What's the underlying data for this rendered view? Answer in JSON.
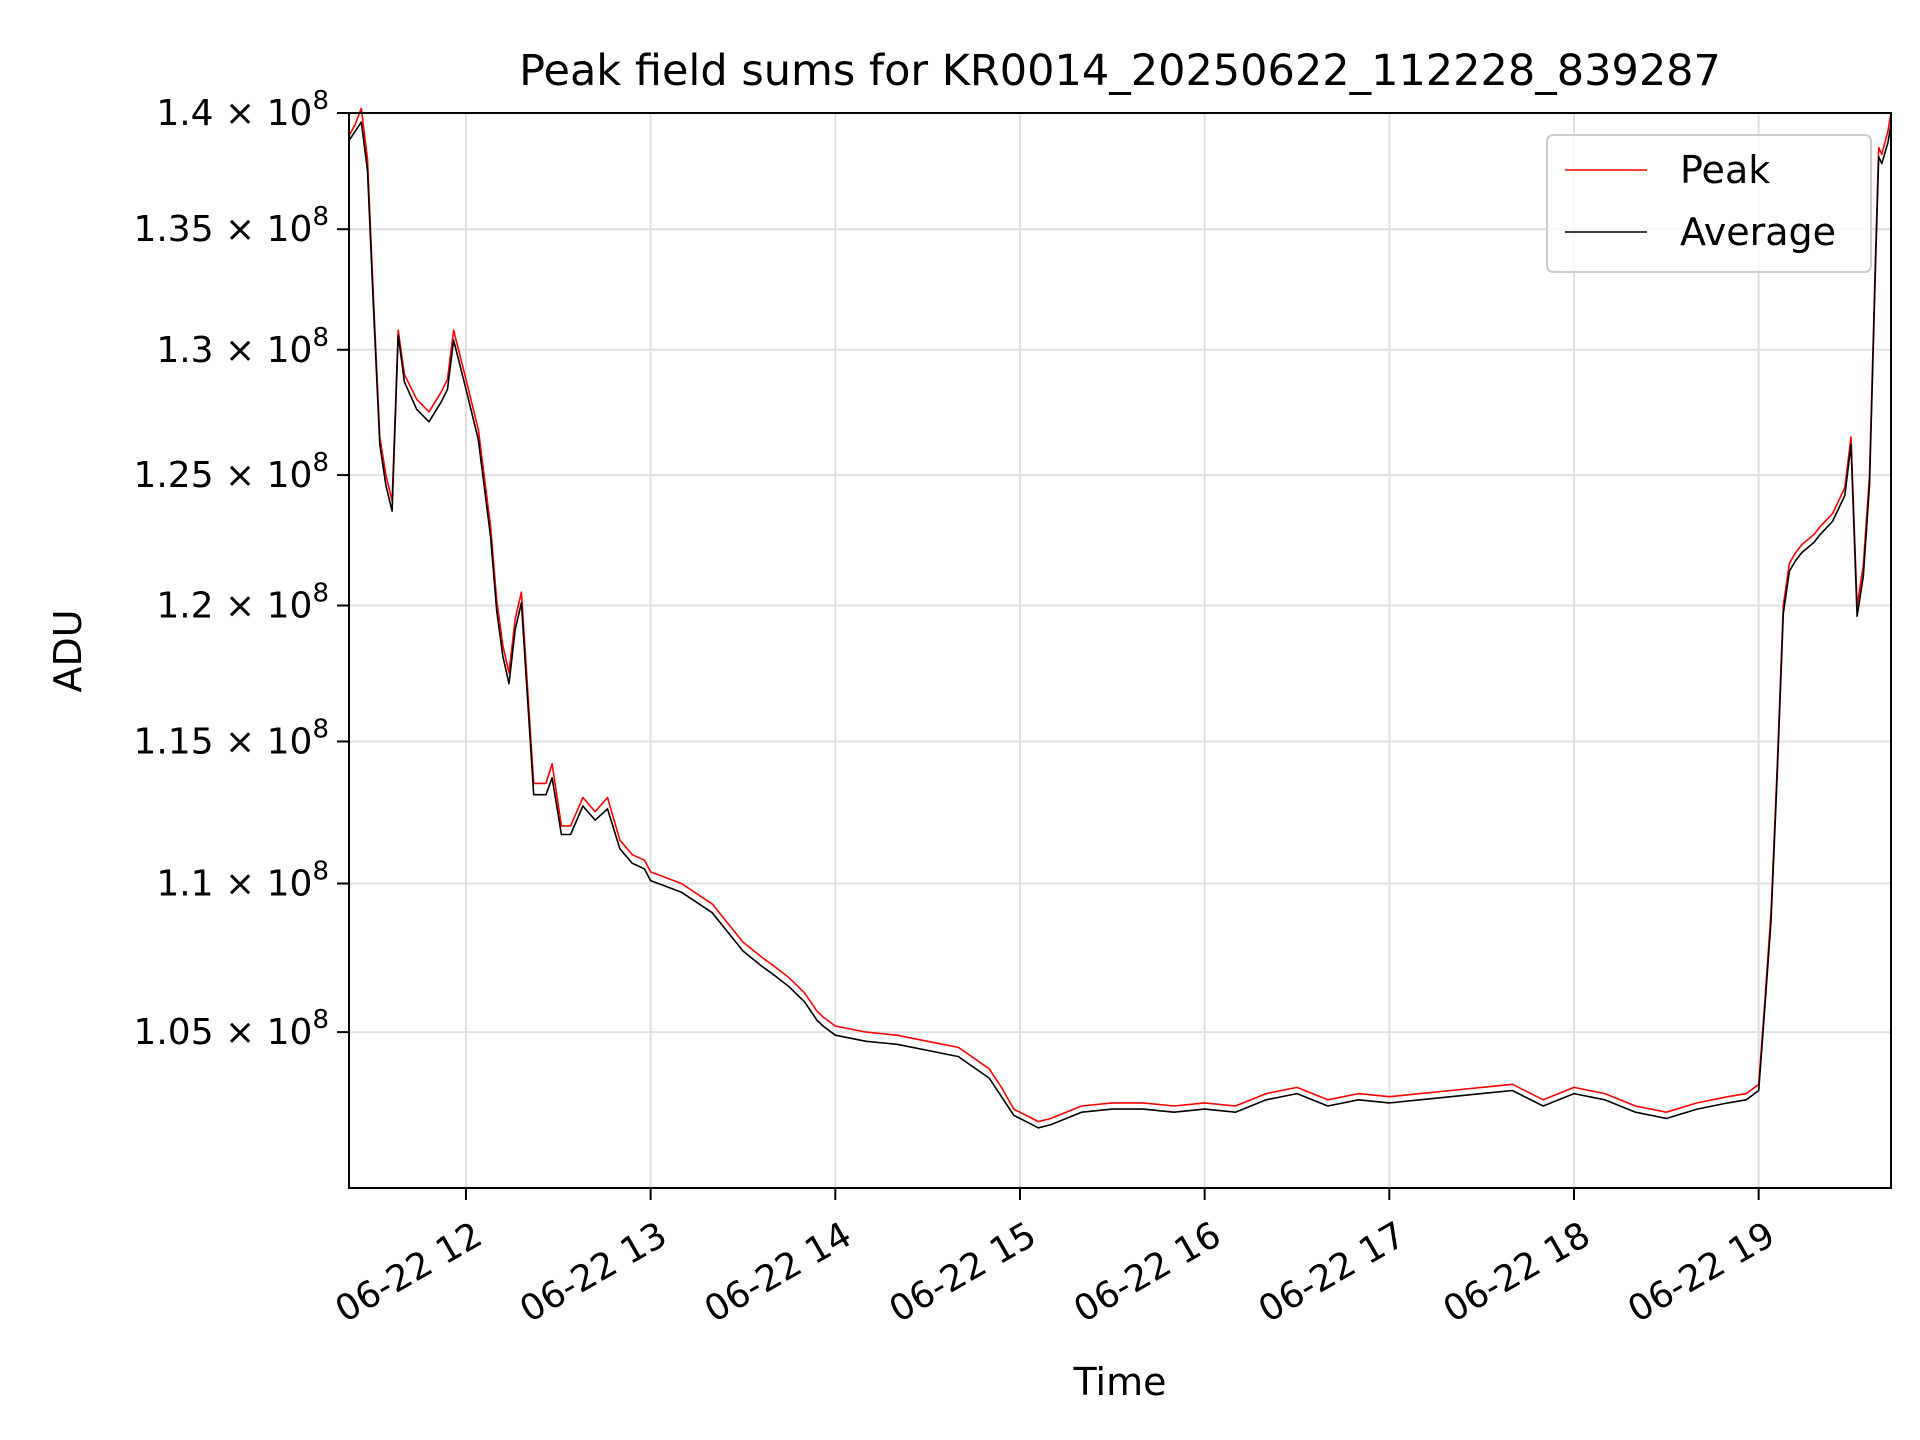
{
  "chart_data": {
    "type": "line",
    "title": "Peak field sums for KR0014_20250622_112228_839287",
    "xlabel": "Time",
    "ylabel": "ADU",
    "yscale": "log",
    "ylim": [
      100000000,
      140000000
    ],
    "xlim": [
      "2025-06-22 11:22",
      "2025-06-22 19:43"
    ],
    "grid": true,
    "legend_position": "top-right",
    "x_ticks": [
      "2025-06-22 12:00",
      "2025-06-22 13:00",
      "2025-06-22 14:00",
      "2025-06-22 15:00",
      "2025-06-22 16:00",
      "2025-06-22 17:00",
      "2025-06-22 18:00",
      "2025-06-22 19:00"
    ],
    "x_tick_labels": [
      "06-22 12",
      "06-22 13",
      "06-22 14",
      "06-22 15",
      "06-22 16",
      "06-22 17",
      "06-22 18",
      "06-22 19"
    ],
    "y_ticks": [
      105000000,
      110000000,
      115000000,
      120000000,
      125000000,
      130000000,
      135000000,
      140000000
    ],
    "y_tick_labels": [
      {
        "mant": "1.05",
        "exp": "8"
      },
      {
        "mant": "1.1",
        "exp": "8"
      },
      {
        "mant": "1.15",
        "exp": "8"
      },
      {
        "mant": "1.2",
        "exp": "8"
      },
      {
        "mant": "1.25",
        "exp": "8"
      },
      {
        "mant": "1.3",
        "exp": "8"
      },
      {
        "mant": "1.35",
        "exp": "8"
      },
      {
        "mant": "1.4",
        "exp": "8"
      }
    ],
    "series": [
      {
        "name": "Peak",
        "color": "#ff0000",
        "x": [
          "2025-06-22 11:22",
          "2025-06-22 11:24",
          "2025-06-22 11:26",
          "2025-06-22 11:28",
          "2025-06-22 11:30",
          "2025-06-22 11:32",
          "2025-06-22 11:34",
          "2025-06-22 11:36",
          "2025-06-22 11:38",
          "2025-06-22 11:40",
          "2025-06-22 11:44",
          "2025-06-22 11:48",
          "2025-06-22 11:52",
          "2025-06-22 11:54",
          "2025-06-22 11:56",
          "2025-06-22 12:00",
          "2025-06-22 12:04",
          "2025-06-22 12:08",
          "2025-06-22 12:10",
          "2025-06-22 12:12",
          "2025-06-22 12:14",
          "2025-06-22 12:16",
          "2025-06-22 12:18",
          "2025-06-22 12:22",
          "2025-06-22 12:26",
          "2025-06-22 12:28",
          "2025-06-22 12:31",
          "2025-06-22 12:34",
          "2025-06-22 12:38",
          "2025-06-22 12:42",
          "2025-06-22 12:46",
          "2025-06-22 12:50",
          "2025-06-22 12:54",
          "2025-06-22 12:58",
          "2025-06-22 13:00",
          "2025-06-22 13:10",
          "2025-06-22 13:20",
          "2025-06-22 13:30",
          "2025-06-22 13:36",
          "2025-06-22 13:40",
          "2025-06-22 13:45",
          "2025-06-22 13:50",
          "2025-06-22 13:52",
          "2025-06-22 13:54",
          "2025-06-22 13:56",
          "2025-06-22 14:00",
          "2025-06-22 14:10",
          "2025-06-22 14:20",
          "2025-06-22 14:30",
          "2025-06-22 14:40",
          "2025-06-22 14:50",
          "2025-06-22 14:54",
          "2025-06-22 14:58",
          "2025-06-22 15:02",
          "2025-06-22 15:04",
          "2025-06-22 15:06",
          "2025-06-22 15:10",
          "2025-06-22 15:20",
          "2025-06-22 15:30",
          "2025-06-22 15:40",
          "2025-06-22 15:50",
          "2025-06-22 16:00",
          "2025-06-22 16:10",
          "2025-06-22 16:20",
          "2025-06-22 16:30",
          "2025-06-22 16:40",
          "2025-06-22 16:50",
          "2025-06-22 17:00",
          "2025-06-22 17:10",
          "2025-06-22 17:20",
          "2025-06-22 17:30",
          "2025-06-22 17:40",
          "2025-06-22 17:50",
          "2025-06-22 18:00",
          "2025-06-22 18:10",
          "2025-06-22 18:20",
          "2025-06-22 18:30",
          "2025-06-22 18:40",
          "2025-06-22 18:50",
          "2025-06-22 18:56",
          "2025-06-22 19:00",
          "2025-06-22 19:02",
          "2025-06-22 19:04",
          "2025-06-22 19:06",
          "2025-06-22 19:08",
          "2025-06-22 19:10",
          "2025-06-22 19:12",
          "2025-06-22 19:14",
          "2025-06-22 19:16",
          "2025-06-22 19:18",
          "2025-06-22 19:20",
          "2025-06-22 19:24",
          "2025-06-22 19:28",
          "2025-06-22 19:30",
          "2025-06-22 19:32",
          "2025-06-22 19:34",
          "2025-06-22 19:36",
          "2025-06-22 19:38",
          "2025-06-22 19:39",
          "2025-06-22 19:40",
          "2025-06-22 19:42",
          "2025-06-22 19:43"
        ],
        "y": [
          139000000,
          139500000,
          140200000,
          138000000,
          132000000,
          126500000,
          125000000,
          124000000,
          130800000,
          129000000,
          128000000,
          127500000,
          128300000,
          128800000,
          130800000,
          128800000,
          126800000,
          123000000,
          120200000,
          118500000,
          117500000,
          119500000,
          120500000,
          113500000,
          113500000,
          114200000,
          112000000,
          112000000,
          113000000,
          112500000,
          113000000,
          111500000,
          111000000,
          110800000,
          110400000,
          110000000,
          109300000,
          108000000,
          107500000,
          107200000,
          106800000,
          106300000,
          106000000,
          105700000,
          105500000,
          105200000,
          105000000,
          104900000,
          104700000,
          104500000,
          103800000,
          103200000,
          102500000,
          102300000,
          102200000,
          102100000,
          102200000,
          102600000,
          102700000,
          102700000,
          102600000,
          102700000,
          102600000,
          103000000,
          103200000,
          102800000,
          103000000,
          102900000,
          103000000,
          103100000,
          103200000,
          103300000,
          102800000,
          103200000,
          103000000,
          102600000,
          102400000,
          102700000,
          102900000,
          103000000,
          103300000,
          106000000,
          109000000,
          114000000,
          120000000,
          121600000,
          122000000,
          122300000,
          122500000,
          122700000,
          123000000,
          123500000,
          124500000,
          126500000,
          120000000,
          121500000,
          125000000,
          134000000,
          138500000,
          138200000,
          139200000,
          140000000
        ]
      },
      {
        "name": "Average",
        "color": "#000000",
        "x": [
          "2025-06-22 11:22",
          "2025-06-22 11:24",
          "2025-06-22 11:26",
          "2025-06-22 11:28",
          "2025-06-22 11:30",
          "2025-06-22 11:32",
          "2025-06-22 11:34",
          "2025-06-22 11:36",
          "2025-06-22 11:38",
          "2025-06-22 11:40",
          "2025-06-22 11:44",
          "2025-06-22 11:48",
          "2025-06-22 11:52",
          "2025-06-22 11:54",
          "2025-06-22 11:56",
          "2025-06-22 12:00",
          "2025-06-22 12:04",
          "2025-06-22 12:08",
          "2025-06-22 12:10",
          "2025-06-22 12:12",
          "2025-06-22 12:14",
          "2025-06-22 12:16",
          "2025-06-22 12:18",
          "2025-06-22 12:22",
          "2025-06-22 12:26",
          "2025-06-22 12:28",
          "2025-06-22 12:31",
          "2025-06-22 12:34",
          "2025-06-22 12:38",
          "2025-06-22 12:42",
          "2025-06-22 12:46",
          "2025-06-22 12:50",
          "2025-06-22 12:54",
          "2025-06-22 12:58",
          "2025-06-22 13:00",
          "2025-06-22 13:10",
          "2025-06-22 13:20",
          "2025-06-22 13:30",
          "2025-06-22 13:36",
          "2025-06-22 13:40",
          "2025-06-22 13:45",
          "2025-06-22 13:50",
          "2025-06-22 13:52",
          "2025-06-22 13:54",
          "2025-06-22 13:56",
          "2025-06-22 14:00",
          "2025-06-22 14:10",
          "2025-06-22 14:20",
          "2025-06-22 14:30",
          "2025-06-22 14:40",
          "2025-06-22 14:50",
          "2025-06-22 14:54",
          "2025-06-22 14:58",
          "2025-06-22 15:02",
          "2025-06-22 15:04",
          "2025-06-22 15:06",
          "2025-06-22 15:10",
          "2025-06-22 15:20",
          "2025-06-22 15:30",
          "2025-06-22 15:40",
          "2025-06-22 15:50",
          "2025-06-22 16:00",
          "2025-06-22 16:10",
          "2025-06-22 16:20",
          "2025-06-22 16:30",
          "2025-06-22 16:40",
          "2025-06-22 16:50",
          "2025-06-22 17:00",
          "2025-06-22 17:10",
          "2025-06-22 17:20",
          "2025-06-22 17:30",
          "2025-06-22 17:40",
          "2025-06-22 17:50",
          "2025-06-22 18:00",
          "2025-06-22 18:10",
          "2025-06-22 18:20",
          "2025-06-22 18:30",
          "2025-06-22 18:40",
          "2025-06-22 18:50",
          "2025-06-22 18:56",
          "2025-06-22 19:00",
          "2025-06-22 19:02",
          "2025-06-22 19:04",
          "2025-06-22 19:06",
          "2025-06-22 19:08",
          "2025-06-22 19:10",
          "2025-06-22 19:12",
          "2025-06-22 19:14",
          "2025-06-22 19:16",
          "2025-06-22 19:18",
          "2025-06-22 19:20",
          "2025-06-22 19:24",
          "2025-06-22 19:28",
          "2025-06-22 19:30",
          "2025-06-22 19:32",
          "2025-06-22 19:34",
          "2025-06-22 19:36",
          "2025-06-22 19:38",
          "2025-06-22 19:39",
          "2025-06-22 19:40",
          "2025-06-22 19:42",
          "2025-06-22 19:43"
        ],
        "y": [
          138800000,
          139200000,
          139600000,
          137500000,
          131600000,
          126200000,
          124600000,
          123600000,
          130600000,
          128700000,
          127600000,
          127100000,
          127900000,
          128400000,
          130400000,
          128400000,
          126400000,
          122600000,
          119800000,
          118100000,
          117100000,
          119100000,
          120100000,
          113100000,
          113100000,
          113700000,
          111700000,
          111700000,
          112700000,
          112200000,
          112600000,
          111200000,
          110700000,
          110500000,
          110100000,
          109700000,
          109000000,
          107700000,
          107200000,
          106900000,
          106500000,
          106000000,
          105700000,
          105400000,
          105200000,
          104900000,
          104700000,
          104600000,
          104400000,
          104200000,
          103500000,
          102900000,
          102300000,
          102100000,
          102000000,
          101900000,
          102000000,
          102400000,
          102500000,
          102500000,
          102400000,
          102500000,
          102400000,
          102800000,
          103000000,
          102600000,
          102800000,
          102700000,
          102800000,
          102900000,
          103000000,
          103100000,
          102600000,
          103000000,
          102800000,
          102400000,
          102200000,
          102500000,
          102700000,
          102800000,
          103100000,
          105800000,
          108700000,
          113700000,
          119700000,
          121300000,
          121700000,
          122000000,
          122200000,
          122400000,
          122700000,
          123200000,
          124200000,
          126200000,
          119600000,
          121100000,
          124600000,
          133600000,
          138100000,
          137800000,
          138700000,
          139500000
        ]
      }
    ]
  }
}
